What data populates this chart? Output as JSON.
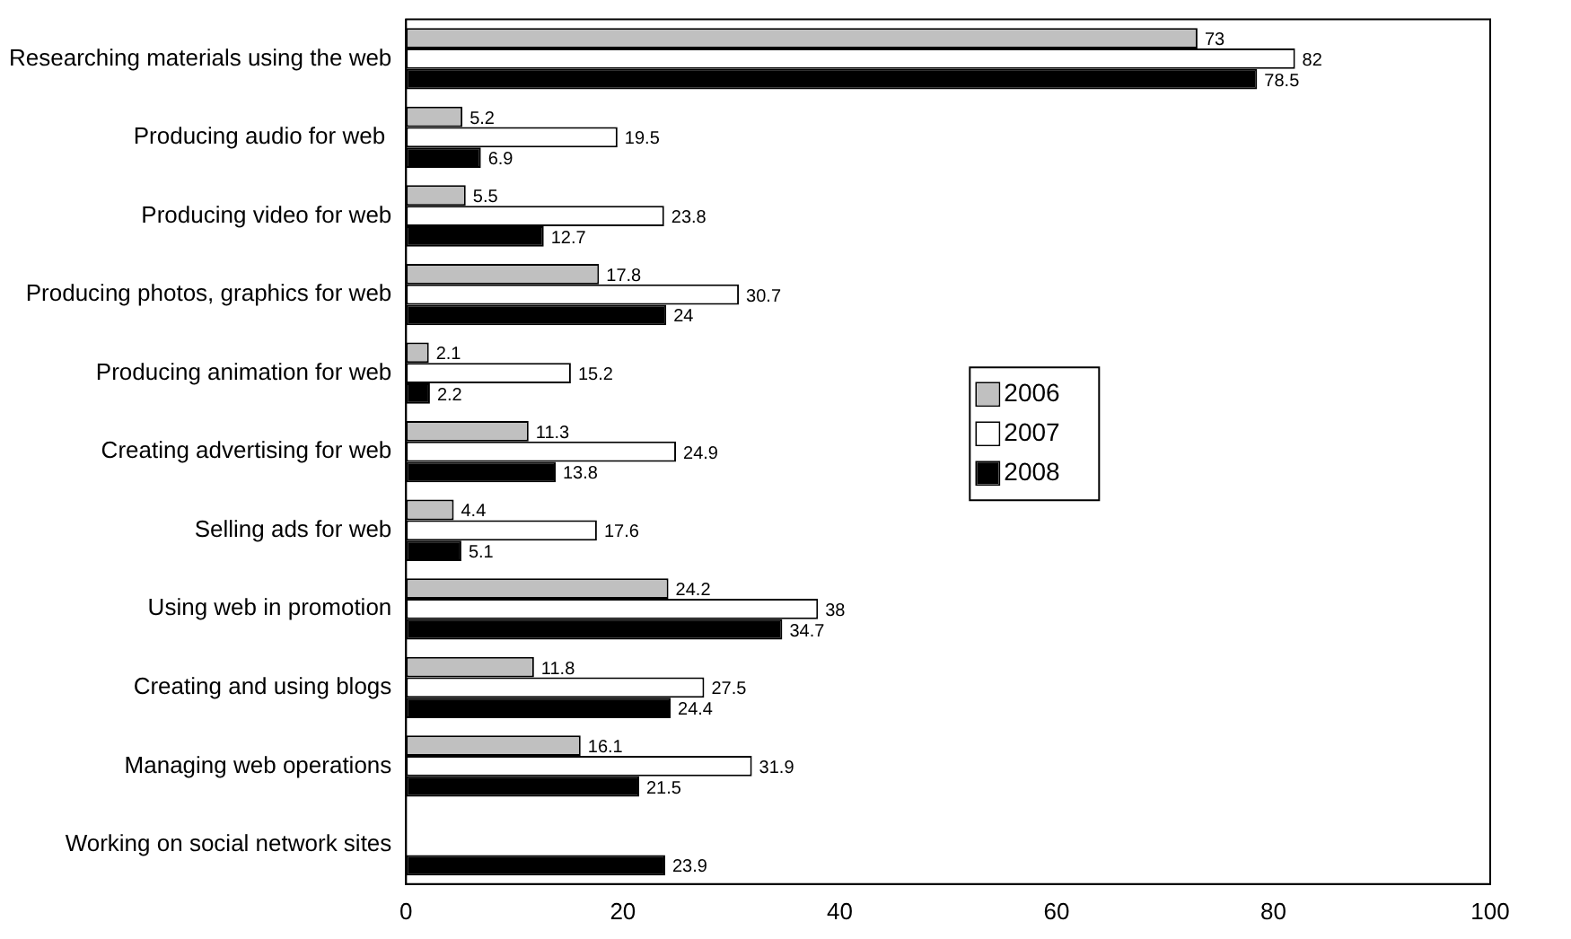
{
  "chart_data": {
    "type": "bar",
    "orientation": "horizontal",
    "categories": [
      "Researching materials using the web",
      "Producing audio for web ",
      "Producing video for web",
      "Producing photos, graphics for web",
      "Producing animation for web",
      "Creating advertising for web",
      "Selling ads for web",
      "Using web in promotion",
      "Creating and using blogs",
      "Managing web operations",
      "Working on social network sites"
    ],
    "series": [
      {
        "name": "2006",
        "color": "#c0c0c0",
        "values": [
          73,
          5.2,
          5.5,
          17.8,
          2.1,
          11.3,
          4.4,
          24.2,
          11.8,
          16.1,
          null
        ]
      },
      {
        "name": "2007",
        "color": "#ffffff",
        "values": [
          82,
          19.5,
          23.8,
          30.7,
          15.2,
          24.9,
          17.6,
          38,
          27.5,
          31.9,
          null
        ]
      },
      {
        "name": "2008",
        "color": "#000000",
        "values": [
          78.5,
          6.9,
          12.7,
          24,
          2.2,
          13.8,
          5.1,
          34.7,
          24.4,
          21.5,
          23.9
        ]
      }
    ],
    "xlim": [
      0,
      100
    ],
    "xticks": [
      0,
      20,
      40,
      60,
      80,
      100
    ],
    "grid": false,
    "legend": "right",
    "data_labels": true
  }
}
